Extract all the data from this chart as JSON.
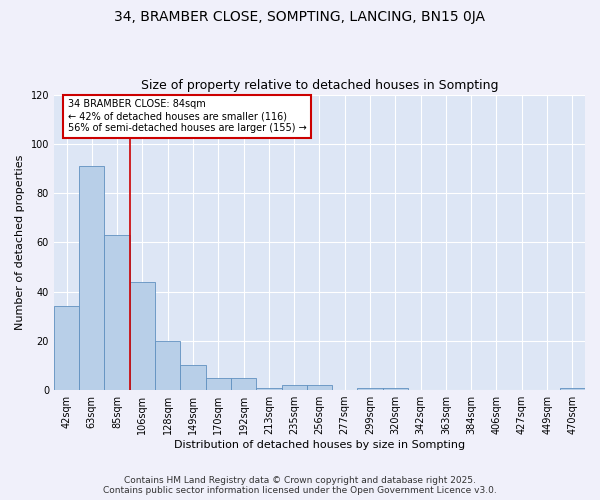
{
  "title": "34, BRAMBER CLOSE, SOMPTING, LANCING, BN15 0JA",
  "subtitle": "Size of property relative to detached houses in Sompting",
  "xlabel": "Distribution of detached houses by size in Sompting",
  "ylabel": "Number of detached properties",
  "categories": [
    "42sqm",
    "63sqm",
    "85sqm",
    "106sqm",
    "128sqm",
    "149sqm",
    "170sqm",
    "192sqm",
    "213sqm",
    "235sqm",
    "256sqm",
    "277sqm",
    "299sqm",
    "320sqm",
    "342sqm",
    "363sqm",
    "384sqm",
    "406sqm",
    "427sqm",
    "449sqm",
    "470sqm"
  ],
  "values": [
    34,
    91,
    63,
    44,
    20,
    10,
    5,
    5,
    1,
    2,
    2,
    0,
    1,
    1,
    0,
    0,
    0,
    0,
    0,
    0,
    1
  ],
  "bar_color": "#b8cfe8",
  "bar_edge_color": "#6090c0",
  "background_color": "#dde6f5",
  "grid_color": "#ffffff",
  "vline_x": 2.5,
  "vline_color": "#cc0000",
  "annotation_text": "34 BRAMBER CLOSE: 84sqm\n← 42% of detached houses are smaller (116)\n56% of semi-detached houses are larger (155) →",
  "ylim": [
    0,
    120
  ],
  "yticks": [
    0,
    20,
    40,
    60,
    80,
    100,
    120
  ],
  "footer": "Contains HM Land Registry data © Crown copyright and database right 2025.\nContains public sector information licensed under the Open Government Licence v3.0.",
  "title_fontsize": 10,
  "subtitle_fontsize": 9,
  "xlabel_fontsize": 8,
  "ylabel_fontsize": 8,
  "tick_fontsize": 7,
  "annotation_fontsize": 7,
  "footer_fontsize": 6.5
}
